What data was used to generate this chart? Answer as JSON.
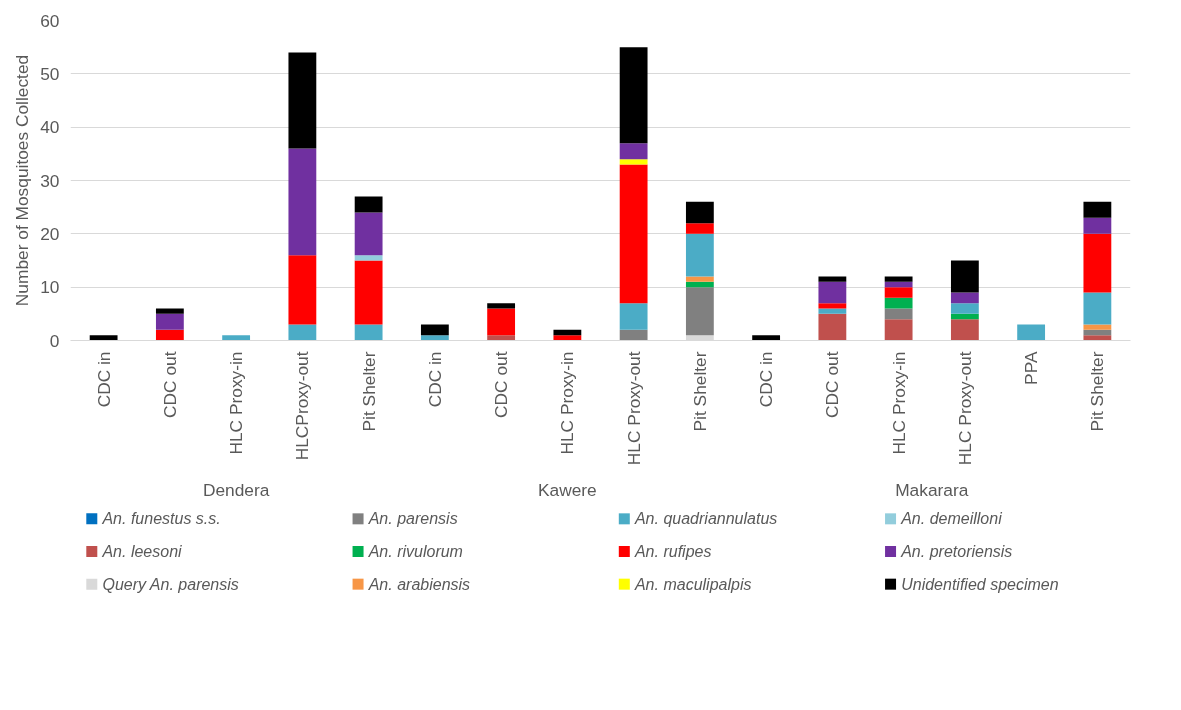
{
  "chart_data": {
    "type": "bar",
    "stacked": true,
    "ylabel": "Number of Mosquitoes Collected",
    "categories": [
      "CDC in",
      "CDC out",
      "HLC Proxy-in",
      "HLCProxy-out",
      "Pit Shelter",
      "CDC in",
      "CDC out",
      "HLC Proxy-in",
      "HLC Proxy-out",
      "Pit Shelter",
      "CDC in",
      "CDC out",
      "HLC Proxy-in",
      "HLC Proxy-out",
      "PPA",
      "Pit Shelter"
    ],
    "annotations": [
      "Dendera",
      "Kawere",
      "Makarara"
    ],
    "ylim": [
      0,
      60
    ],
    "yticks": [
      0,
      10,
      20,
      30,
      40,
      50,
      60
    ],
    "grid": "y",
    "legend": "bottom",
    "series": [
      {
        "name": "An. funestus s.s.",
        "color": "#0070c0",
        "values": [
          0,
          0,
          0,
          0,
          0,
          0,
          0,
          0,
          0,
          0,
          0,
          0,
          0,
          0,
          0,
          0
        ]
      },
      {
        "name": "An. leesoni",
        "color": "#c0504d",
        "values": [
          0,
          0,
          0,
          0,
          0,
          0,
          1,
          0,
          0,
          0,
          0,
          5,
          4,
          4,
          0,
          1
        ]
      },
      {
        "name": "Query An. parensis",
        "color": "#d9d9d9",
        "values": [
          0,
          0,
          0,
          0,
          0,
          0,
          0,
          0,
          0,
          1,
          0,
          0,
          0,
          0,
          0,
          0
        ]
      },
      {
        "name": "An. parensis",
        "color": "#808080",
        "values": [
          0,
          0,
          0,
          0,
          0,
          0,
          0,
          0,
          2,
          9,
          0,
          0,
          2,
          0,
          0,
          1
        ]
      },
      {
        "name": "An. rivulorum",
        "color": "#00b050",
        "values": [
          0,
          0,
          0,
          0,
          0,
          0,
          0,
          0,
          0,
          1,
          0,
          0,
          2,
          1,
          0,
          0
        ]
      },
      {
        "name": "An. arabiensis",
        "color": "#f79646",
        "values": [
          0,
          0,
          0,
          0,
          0,
          0,
          0,
          0,
          0,
          1,
          0,
          0,
          0,
          0,
          0,
          1
        ]
      },
      {
        "name": "An. quadriannulatus",
        "color": "#4bacc6",
        "values": [
          0,
          0,
          1,
          3,
          3,
          1,
          0,
          0,
          5,
          8,
          0,
          1,
          0,
          2,
          3,
          6
        ]
      },
      {
        "name": "An. rufipes",
        "color": "#ff0000",
        "values": [
          0,
          2,
          0,
          13,
          12,
          0,
          5,
          1,
          26,
          2,
          0,
          1,
          2,
          0,
          0,
          11
        ]
      },
      {
        "name": "An. maculipalpis",
        "color": "#ffff00",
        "values": [
          0,
          0,
          0,
          0,
          0,
          0,
          0,
          0,
          1,
          0,
          0,
          0,
          0,
          0,
          0,
          0
        ]
      },
      {
        "name": "An. demeilloni",
        "color": "#92cddc",
        "values": [
          0,
          0,
          0,
          0,
          1,
          0,
          0,
          0,
          0,
          0,
          0,
          0,
          0,
          0,
          0,
          0
        ]
      },
      {
        "name": "An. pretoriensis",
        "color": "#7030a0",
        "values": [
          0,
          3,
          0,
          20,
          8,
          0,
          0,
          0,
          3,
          0,
          0,
          4,
          1,
          2,
          0,
          3
        ]
      },
      {
        "name": "Unidentified specimen",
        "color": "#000000",
        "values": [
          1,
          1,
          0,
          18,
          3,
          2,
          1,
          1,
          18,
          4,
          1,
          1,
          1,
          6,
          0,
          3
        ]
      }
    ]
  }
}
